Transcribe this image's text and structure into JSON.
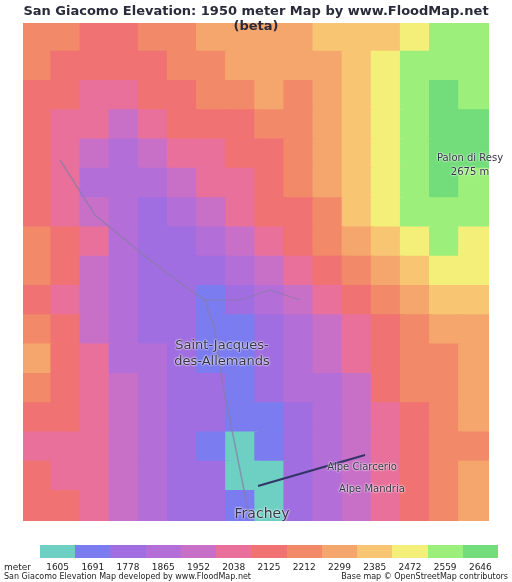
{
  "chart_data": {
    "type": "heatmap",
    "title": "San Giacomo Elevation: 1950 meter Map by www.FloodMap.net (beta)",
    "tick_labels": false,
    "annotations": [
      "Saint-Jacques-des-Allemands",
      "Palon di Resy",
      "2675 m",
      "Alpe Ciarcerio",
      "Alpe Mandria",
      "Frachey"
    ],
    "footer": [
      "San Giacomo Elevation Map developed by www.FloodMap.net",
      "Base map © OpenStreetMap contributors"
    ],
    "color_scale": {
      "label": "meter",
      "ticks": [
        1605,
        1691,
        1778,
        1865,
        1952,
        2038,
        2125,
        2212,
        2299,
        2385,
        2472,
        2559,
        2646
      ],
      "colors": [
        "#6ecfc3",
        "#7b7cf0",
        "#a06ee0",
        "#b46ed8",
        "#c870c8",
        "#e8709a",
        "#f07272",
        "#f28a6a",
        "#f5a66c",
        "#f8c673",
        "#f3ef78",
        "#9cef7a",
        "#72dd7a"
      ]
    },
    "cells": [
      [
        2212,
        2212,
        2125,
        2125,
        2212,
        2212,
        2299,
        2299,
        2299,
        2299,
        2385,
        2385,
        2385,
        2472,
        2559,
        2559
      ],
      [
        2212,
        2125,
        2125,
        2125,
        2125,
        2212,
        2212,
        2299,
        2299,
        2299,
        2299,
        2385,
        2472,
        2559,
        2559,
        2559
      ],
      [
        2125,
        2125,
        2038,
        2038,
        2125,
        2125,
        2212,
        2212,
        2299,
        2212,
        2299,
        2385,
        2472,
        2559,
        2646,
        2559
      ],
      [
        2125,
        2038,
        2038,
        1952,
        2038,
        2125,
        2125,
        2125,
        2212,
        2212,
        2299,
        2385,
        2472,
        2559,
        2646,
        2646
      ],
      [
        2125,
        2038,
        1952,
        1865,
        1952,
        2038,
        2038,
        2125,
        2125,
        2212,
        2299,
        2385,
        2472,
        2559,
        2646,
        2646
      ],
      [
        2125,
        2038,
        1865,
        1865,
        1865,
        1952,
        2038,
        2038,
        2125,
        2212,
        2299,
        2385,
        2472,
        2559,
        2646,
        2559
      ],
      [
        2125,
        2038,
        1952,
        1865,
        1778,
        1865,
        1952,
        2038,
        2125,
        2125,
        2212,
        2385,
        2472,
        2559,
        2559,
        2559
      ],
      [
        2212,
        2125,
        2038,
        1865,
        1778,
        1778,
        1865,
        1952,
        2038,
        2125,
        2212,
        2299,
        2385,
        2472,
        2559,
        2472
      ],
      [
        2212,
        2125,
        1952,
        1865,
        1778,
        1778,
        1778,
        1865,
        1952,
        2038,
        2125,
        2212,
        2299,
        2385,
        2472,
        2472
      ],
      [
        2125,
        2038,
        1952,
        1865,
        1778,
        1778,
        1691,
        1778,
        1865,
        1952,
        2038,
        2125,
        2212,
        2299,
        2385,
        2385
      ],
      [
        2212,
        2125,
        1952,
        1865,
        1778,
        1778,
        1691,
        1691,
        1778,
        1865,
        1952,
        2038,
        2125,
        2212,
        2299,
        2299
      ],
      [
        2299,
        2125,
        2038,
        1865,
        1865,
        1778,
        1691,
        1691,
        1778,
        1865,
        1952,
        2038,
        2125,
        2212,
        2212,
        2299
      ],
      [
        2212,
        2125,
        2038,
        1952,
        1865,
        1778,
        1778,
        1691,
        1778,
        1865,
        1865,
        1952,
        2125,
        2212,
        2212,
        2299
      ],
      [
        2125,
        2125,
        2038,
        1952,
        1865,
        1778,
        1778,
        1691,
        1691,
        1778,
        1865,
        1952,
        2038,
        2125,
        2212,
        2299
      ],
      [
        2038,
        2038,
        2038,
        1952,
        1865,
        1778,
        1691,
        1605,
        1691,
        1778,
        1865,
        1952,
        2038,
        2125,
        2212,
        2212
      ],
      [
        2125,
        2038,
        2038,
        1952,
        1865,
        1778,
        1778,
        1605,
        1605,
        1778,
        1865,
        1952,
        2038,
        2125,
        2212,
        2299
      ],
      [
        2125,
        2125,
        2038,
        1952,
        1865,
        1778,
        1778,
        1691,
        1605,
        1778,
        1865,
        1952,
        2038,
        2125,
        2212,
        2299
      ]
    ]
  }
}
